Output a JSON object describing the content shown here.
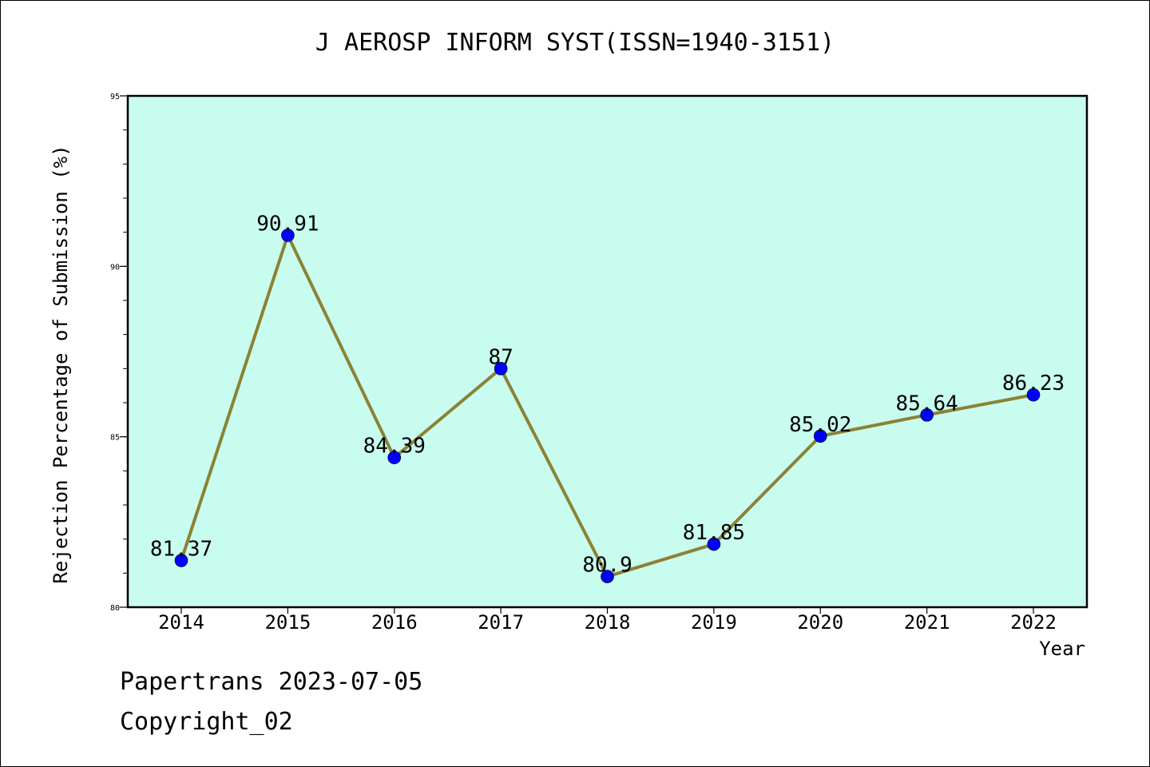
{
  "chart_data": {
    "type": "line",
    "title": "J AEROSP INFORM SYST(ISSN=1940-3151)",
    "xlabel": "Year",
    "ylabel": "Rejection Percentage of Submission (%)",
    "categories": [
      "2014",
      "2015",
      "2016",
      "2017",
      "2018",
      "2019",
      "2020",
      "2021",
      "2022"
    ],
    "series": [
      {
        "values": [
          81.37,
          90.91,
          84.39,
          87,
          80.9,
          81.85,
          85.02,
          85.64,
          86.23
        ],
        "labels": [
          "81.37",
          "90.91",
          "84.39",
          "87",
          "80.9",
          "81.85",
          "85.02",
          "85.64",
          "86.23"
        ]
      }
    ],
    "ylim": [
      80,
      95
    ],
    "yticks": [
      "80",
      "85",
      "90",
      "95"
    ],
    "grid": false,
    "colors": {
      "plot_background": "#c8fcee",
      "line": "#8b8236",
      "marker": "#0000ff"
    }
  },
  "footer": {
    "date_text": "Papertrans 2023-07-05",
    "copyright_text": "Copyright_02"
  }
}
